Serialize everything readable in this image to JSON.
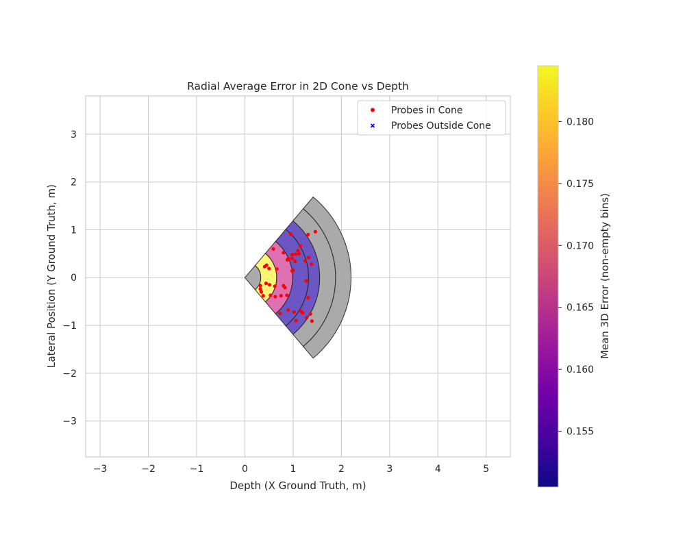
{
  "chart_data": {
    "type": "scatter",
    "title": "Radial Average Error in 2D Cone vs Depth",
    "xlabel": "Depth (X Ground Truth, m)",
    "ylabel": "Lateral Position (Y Ground Truth, m)",
    "xlim": [
      -3.3,
      5.5
    ],
    "ylim": [
      -3.75,
      3.8
    ],
    "x_ticks": [
      -3,
      -2,
      -1,
      0,
      1,
      2,
      3,
      4,
      5
    ],
    "y_ticks": [
      -3,
      -2,
      -1,
      0,
      1,
      2,
      3
    ],
    "x_tick_labels": [
      "−3",
      "−2",
      "−1",
      "0",
      "1",
      "2",
      "3",
      "4",
      "5"
    ],
    "y_tick_labels": [
      "−3",
      "−2",
      "−1",
      "0",
      "1",
      "2",
      "3"
    ],
    "grid": true,
    "legend_position": "top-right",
    "legend": [
      {
        "label": "Probes in Cone",
        "marker": "circle",
        "color": "#ff0000"
      },
      {
        "label": "Probes Outside Cone",
        "marker": "x",
        "color": "#0000cc"
      }
    ],
    "cone": {
      "half_angle_deg": 50,
      "bins": [
        {
          "r_inner": 0.0,
          "r_outer": 0.33,
          "mean_error": null,
          "color": "#aaaaaa"
        },
        {
          "r_inner": 0.33,
          "r_outer": 0.66,
          "mean_error": 0.182,
          "color": "#fcf575"
        },
        {
          "r_inner": 0.66,
          "r_outer": 0.99,
          "mean_error": 0.167,
          "color": "#df71b3"
        },
        {
          "r_inner": 0.99,
          "r_outer": 1.32,
          "mean_error": 0.1525,
          "color": "#6b56c4"
        },
        {
          "r_inner": 1.32,
          "r_outer": 1.55,
          "mean_error": 0.1525,
          "color": "#6b56c4"
        },
        {
          "r_inner": 1.55,
          "r_outer": 1.88,
          "mean_error": null,
          "color": "#aaaaaa"
        },
        {
          "r_inner": 1.88,
          "r_outer": 2.2,
          "mean_error": null,
          "color": "#aaaaaa"
        }
      ]
    },
    "series": [
      {
        "name": "Probes in Cone",
        "points": [
          [
            1.46,
            0.96
          ],
          [
            1.31,
            0.9
          ],
          [
            0.95,
            0.91
          ],
          [
            1.15,
            0.66
          ],
          [
            0.59,
            0.6
          ],
          [
            1.1,
            0.56
          ],
          [
            1.05,
            0.49
          ],
          [
            0.98,
            0.48
          ],
          [
            1.12,
            0.5
          ],
          [
            0.8,
            0.52
          ],
          [
            1.32,
            0.42
          ],
          [
            0.98,
            0.4
          ],
          [
            0.9,
            0.4
          ],
          [
            0.88,
            0.37
          ],
          [
            1.25,
            0.35
          ],
          [
            1.04,
            0.34
          ],
          [
            1.38,
            0.28
          ],
          [
            0.45,
            0.26
          ],
          [
            0.41,
            0.23
          ],
          [
            0.5,
            0.19
          ],
          [
            0.66,
            0.18
          ],
          [
            1.0,
            0.15
          ],
          [
            0.98,
            0.14
          ],
          [
            1.27,
            -0.07
          ],
          [
            0.44,
            -0.12
          ],
          [
            0.51,
            -0.15
          ],
          [
            0.32,
            -0.17
          ],
          [
            0.8,
            -0.17
          ],
          [
            0.62,
            -0.18
          ],
          [
            0.83,
            -0.21
          ],
          [
            0.32,
            -0.24
          ],
          [
            0.34,
            -0.3
          ],
          [
            0.38,
            -0.38
          ],
          [
            0.53,
            -0.37
          ],
          [
            0.87,
            -0.37
          ],
          [
            0.63,
            -0.4
          ],
          [
            0.75,
            -0.38
          ],
          [
            1.31,
            -0.42
          ],
          [
            0.9,
            -0.68
          ],
          [
            1.16,
            -0.7
          ],
          [
            1.2,
            -0.74
          ],
          [
            1.02,
            -0.72
          ],
          [
            0.73,
            -0.75
          ],
          [
            1.36,
            -0.76
          ],
          [
            1.28,
            -0.84
          ],
          [
            1.06,
            -0.9
          ],
          [
            1.39,
            -0.91
          ]
        ]
      },
      {
        "name": "Probes Outside Cone",
        "points": []
      }
    ]
  },
  "colorbar": {
    "label": "Mean 3D Error (non-empty bins)",
    "min": 0.1505,
    "max": 0.1845,
    "ticks": [
      0.155,
      0.16,
      0.165,
      0.17,
      0.175,
      0.18
    ],
    "tick_labels": [
      "0.155",
      "0.160",
      "0.165",
      "0.170",
      "0.175",
      "0.180"
    ],
    "colormap": "plasma",
    "stops": [
      "#0d0887",
      "#46039f",
      "#7201a8",
      "#9c179e",
      "#bd3786",
      "#d8576b",
      "#ed7953",
      "#fb9f3a",
      "#fdca26",
      "#f0f921"
    ]
  }
}
